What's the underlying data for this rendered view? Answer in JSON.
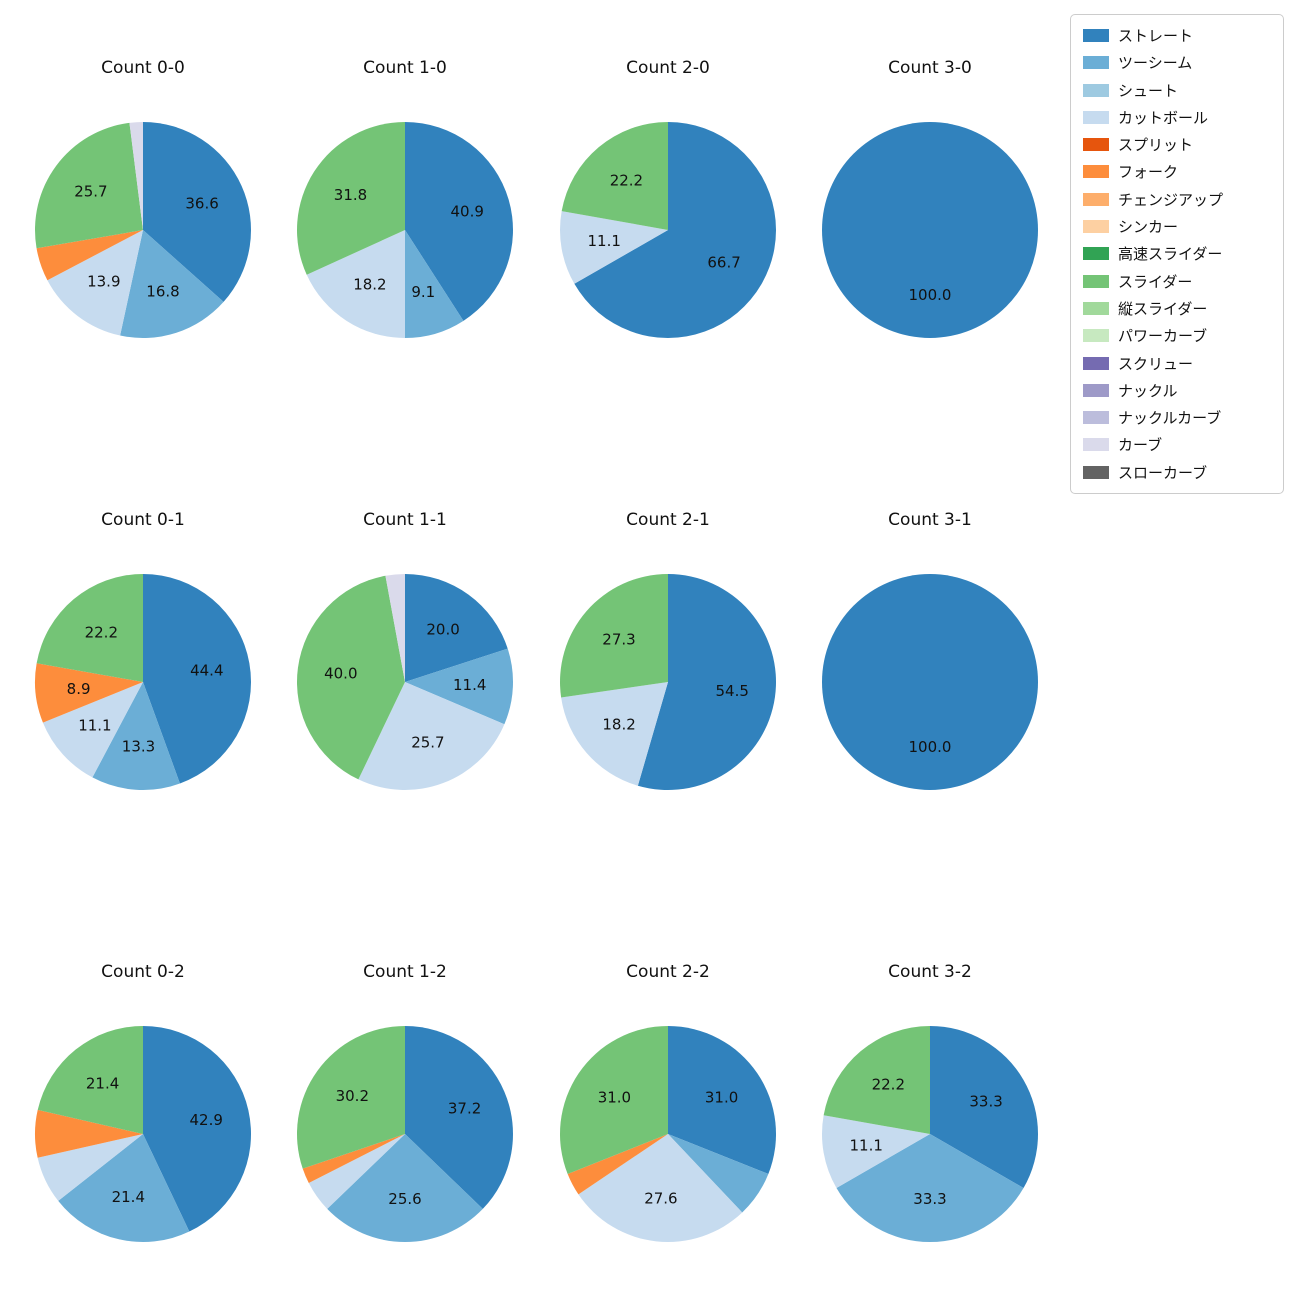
{
  "legend": {
    "items": [
      {
        "label": "ストレート",
        "color": "#3182bd"
      },
      {
        "label": "ツーシーム",
        "color": "#6baed6"
      },
      {
        "label": "シュート",
        "color": "#9ecae1"
      },
      {
        "label": "カットボール",
        "color": "#c6dbef"
      },
      {
        "label": "スプリット",
        "color": "#e6550d"
      },
      {
        "label": "フォーク",
        "color": "#fd8d3c"
      },
      {
        "label": "チェンジアップ",
        "color": "#fdae6b"
      },
      {
        "label": "シンカー",
        "color": "#fdd0a2"
      },
      {
        "label": "高速スライダー",
        "color": "#31a354"
      },
      {
        "label": "スライダー",
        "color": "#74c476"
      },
      {
        "label": "縦スライダー",
        "color": "#a1d99b"
      },
      {
        "label": "パワーカーブ",
        "color": "#c7e9c0"
      },
      {
        "label": "スクリュー",
        "color": "#756bb1"
      },
      {
        "label": "ナックル",
        "color": "#9e9ac8"
      },
      {
        "label": "ナックルカーブ",
        "color": "#bcbddc"
      },
      {
        "label": "カーブ",
        "color": "#dadaeb"
      },
      {
        "label": "スローカーブ",
        "color": "#636363"
      }
    ]
  },
  "chart_data": [
    {
      "type": "pie",
      "title": "Count 0-0",
      "slices": [
        {
          "pitch": "ストレート",
          "value": 36.6,
          "label": "36.6"
        },
        {
          "pitch": "ツーシーム",
          "value": 16.8,
          "label": "16.8"
        },
        {
          "pitch": "カットボール",
          "value": 13.9,
          "label": "13.9"
        },
        {
          "pitch": "フォーク",
          "value": 5.0,
          "label": ""
        },
        {
          "pitch": "スライダー",
          "value": 25.7,
          "label": "25.7"
        },
        {
          "pitch": "カーブ",
          "value": 2.0,
          "label": ""
        }
      ]
    },
    {
      "type": "pie",
      "title": "Count 1-0",
      "slices": [
        {
          "pitch": "ストレート",
          "value": 40.9,
          "label": "40.9"
        },
        {
          "pitch": "ツーシーム",
          "value": 9.1,
          "label": "9.1"
        },
        {
          "pitch": "カットボール",
          "value": 18.2,
          "label": "18.2"
        },
        {
          "pitch": "スライダー",
          "value": 31.8,
          "label": "31.8"
        }
      ]
    },
    {
      "type": "pie",
      "title": "Count 2-0",
      "slices": [
        {
          "pitch": "ストレート",
          "value": 66.7,
          "label": "66.7"
        },
        {
          "pitch": "カットボール",
          "value": 11.1,
          "label": "11.1"
        },
        {
          "pitch": "スライダー",
          "value": 22.2,
          "label": "22.2"
        }
      ]
    },
    {
      "type": "pie",
      "title": "Count 3-0",
      "slices": [
        {
          "pitch": "ストレート",
          "value": 100.0,
          "label": "100.0"
        }
      ]
    },
    {
      "type": "pie",
      "title": "Count 0-1",
      "slices": [
        {
          "pitch": "ストレート",
          "value": 44.4,
          "label": "44.4"
        },
        {
          "pitch": "ツーシーム",
          "value": 13.3,
          "label": "13.3"
        },
        {
          "pitch": "カットボール",
          "value": 11.1,
          "label": "11.1"
        },
        {
          "pitch": "フォーク",
          "value": 8.9,
          "label": "8.9"
        },
        {
          "pitch": "スライダー",
          "value": 22.2,
          "label": "22.2"
        }
      ]
    },
    {
      "type": "pie",
      "title": "Count 1-1",
      "slices": [
        {
          "pitch": "ストレート",
          "value": 20.0,
          "label": "20.0"
        },
        {
          "pitch": "ツーシーム",
          "value": 11.4,
          "label": "11.4"
        },
        {
          "pitch": "カットボール",
          "value": 25.7,
          "label": "25.7"
        },
        {
          "pitch": "スライダー",
          "value": 40.0,
          "label": "40.0"
        },
        {
          "pitch": "カーブ",
          "value": 2.9,
          "label": ""
        }
      ]
    },
    {
      "type": "pie",
      "title": "Count 2-1",
      "slices": [
        {
          "pitch": "ストレート",
          "value": 54.5,
          "label": "54.5"
        },
        {
          "pitch": "カットボール",
          "value": 18.2,
          "label": "18.2"
        },
        {
          "pitch": "スライダー",
          "value": 27.3,
          "label": "27.3"
        }
      ]
    },
    {
      "type": "pie",
      "title": "Count 3-1",
      "slices": [
        {
          "pitch": "ストレート",
          "value": 100.0,
          "label": "100.0"
        }
      ]
    },
    {
      "type": "pie",
      "title": "Count 0-2",
      "slices": [
        {
          "pitch": "ストレート",
          "value": 42.9,
          "label": "42.9"
        },
        {
          "pitch": "ツーシーム",
          "value": 21.4,
          "label": "21.4"
        },
        {
          "pitch": "カットボール",
          "value": 7.1,
          "label": ""
        },
        {
          "pitch": "フォーク",
          "value": 7.1,
          "label": ""
        },
        {
          "pitch": "スライダー",
          "value": 21.4,
          "label": "21.4"
        }
      ]
    },
    {
      "type": "pie",
      "title": "Count 1-2",
      "slices": [
        {
          "pitch": "ストレート",
          "value": 37.2,
          "label": "37.2"
        },
        {
          "pitch": "ツーシーム",
          "value": 25.6,
          "label": "25.6"
        },
        {
          "pitch": "カットボール",
          "value": 4.7,
          "label": ""
        },
        {
          "pitch": "フォーク",
          "value": 2.3,
          "label": ""
        },
        {
          "pitch": "スライダー",
          "value": 30.2,
          "label": "30.2"
        }
      ]
    },
    {
      "type": "pie",
      "title": "Count 2-2",
      "slices": [
        {
          "pitch": "ストレート",
          "value": 31.0,
          "label": "31.0"
        },
        {
          "pitch": "ツーシーム",
          "value": 6.9,
          "label": ""
        },
        {
          "pitch": "カットボール",
          "value": 27.6,
          "label": "27.6"
        },
        {
          "pitch": "フォーク",
          "value": 3.4,
          "label": ""
        },
        {
          "pitch": "スライダー",
          "value": 31.0,
          "label": "31.0"
        }
      ]
    },
    {
      "type": "pie",
      "title": "Count 3-2",
      "slices": [
        {
          "pitch": "ストレート",
          "value": 33.3,
          "label": "33.3"
        },
        {
          "pitch": "ツーシーム",
          "value": 33.3,
          "label": "33.3"
        },
        {
          "pitch": "カットボール",
          "value": 11.1,
          "label": "11.1"
        },
        {
          "pitch": "スライダー",
          "value": 22.2,
          "label": "22.2"
        }
      ]
    }
  ]
}
